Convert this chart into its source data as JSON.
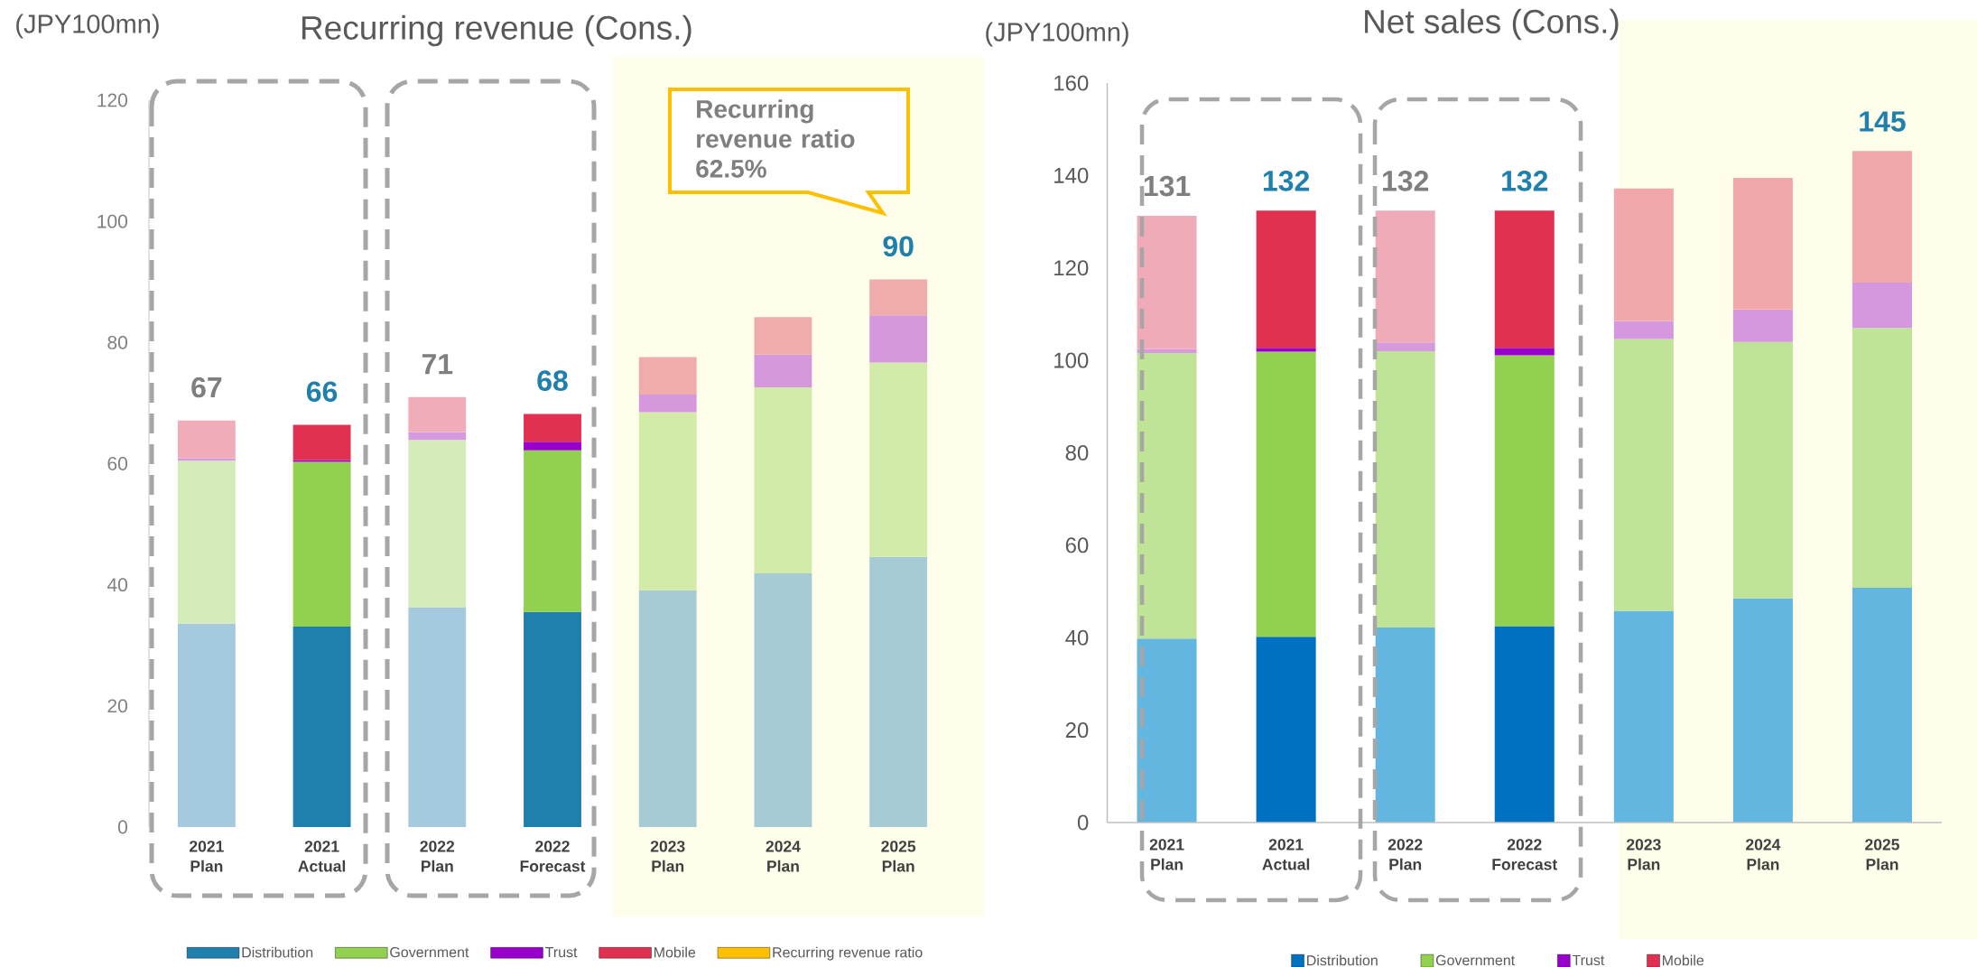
{
  "chart_data": [
    {
      "type": "bar",
      "stacked": true,
      "title": "Recurring revenue (Cons.)",
      "ylabel": "(JPY100mn)",
      "categories": [
        "2021 Plan",
        "2021 Actual",
        "2022 Plan",
        "2022 Forecast",
        "2023 Plan",
        "2024 Plan",
        "2025 Plan"
      ],
      "series": [
        {
          "name": "Distribution",
          "color": "#1f7fad",
          "colors": [
            "#a6cadd",
            "#1f7fad",
            "#a6cadd",
            "#1f7fad",
            "#a6cbd4",
            "#a6cbd4",
            "#a6cbd4"
          ],
          "values": [
            33.6,
            33.1,
            36.3,
            35.5,
            39.1,
            41.9,
            44.6
          ]
        },
        {
          "name": "Government",
          "color": "#92d050",
          "colors": [
            "#d5ebb9",
            "#92d050",
            "#d5ebb9",
            "#92d050",
            "#d3eba9",
            "#d3eba9",
            "#d3eba9"
          ],
          "values": [
            26.9,
            27.2,
            27.6,
            26.7,
            29.4,
            30.7,
            32.1
          ]
        },
        {
          "name": "Trust",
          "color": "#9900cc",
          "colors": [
            "#d59adf",
            "#9900cc",
            "#d59adf",
            "#9900cc",
            "#d598dd",
            "#d598dd",
            "#d598dd"
          ],
          "values": [
            0.4,
            0.3,
            1.3,
            1.4,
            2.9,
            5.4,
            7.8
          ]
        },
        {
          "name": "Mobile",
          "color": "#e03150",
          "colors": [
            "#f0acb8",
            "#e03150",
            "#f0acb8",
            "#e03150",
            "#f0abab",
            "#f0abab",
            "#f0abab"
          ],
          "values": [
            6.2,
            5.8,
            5.8,
            4.6,
            6.2,
            6.2,
            5.9
          ]
        },
        {
          "name": "Recurring revenue ratio",
          "color": "#ffc000",
          "values": [
            null,
            null,
            null,
            null,
            null,
            null,
            null
          ]
        }
      ],
      "totals": [
        "67",
        "66",
        "71",
        "68",
        null,
        null,
        "90"
      ],
      "ylim": [
        0,
        120
      ],
      "yticks": [
        0,
        20,
        40,
        60,
        80,
        100,
        120
      ],
      "annotations": [
        "Recurring revenue ratio 62.5%"
      ],
      "legend": "bottom"
    },
    {
      "type": "bar",
      "stacked": true,
      "title": "Net sales (Cons.)",
      "ylabel": "(JPY100mn)",
      "categories": [
        "2021 Plan",
        "2021 Actual",
        "2022 Plan",
        "2022 Forecast",
        "2023 Plan",
        "2024 Plan",
        "2025 Plan"
      ],
      "series": [
        {
          "name": "Distribution",
          "color": "#0070c0",
          "colors": [
            "#63b6e0",
            "#0070c0",
            "#63b6e0",
            "#0070c0",
            "#63b6e0",
            "#63b6e0",
            "#63b6e0"
          ],
          "values": [
            39.8,
            40.2,
            42.2,
            42.5,
            45.8,
            48.5,
            50.8
          ]
        },
        {
          "name": "Government",
          "color": "#92d050",
          "colors": [
            "#bfe397",
            "#92d050",
            "#bfe397",
            "#92d050",
            "#bfe397",
            "#bfe397",
            "#bfe397"
          ],
          "values": [
            61.8,
            61.7,
            59.8,
            58.6,
            58.8,
            55.5,
            56.2
          ]
        },
        {
          "name": "Trust",
          "color": "#9900cc",
          "colors": [
            "#d59ade",
            "#9900cc",
            "#d59ade",
            "#9900cc",
            "#d597dd",
            "#d597dd",
            "#d597dd"
          ],
          "values": [
            0.8,
            0.8,
            1.9,
            1.6,
            3.9,
            7.0,
            9.8
          ]
        },
        {
          "name": "Mobile",
          "color": "#e03150",
          "colors": [
            "#f0abb8",
            "#e03150",
            "#f0abb8",
            "#e03150",
            "#f0a8aa",
            "#f0a8aa",
            "#f0a8aa"
          ],
          "values": [
            28.9,
            29.7,
            28.5,
            29.7,
            28.7,
            28.5,
            28.5
          ]
        }
      ],
      "totals": [
        "131",
        "132",
        "132",
        "132",
        null,
        null,
        "145"
      ],
      "ylim": [
        0,
        160
      ],
      "yticks": [
        0,
        20,
        40,
        60,
        80,
        100,
        120,
        140,
        160
      ],
      "legend": "bottom"
    }
  ]
}
